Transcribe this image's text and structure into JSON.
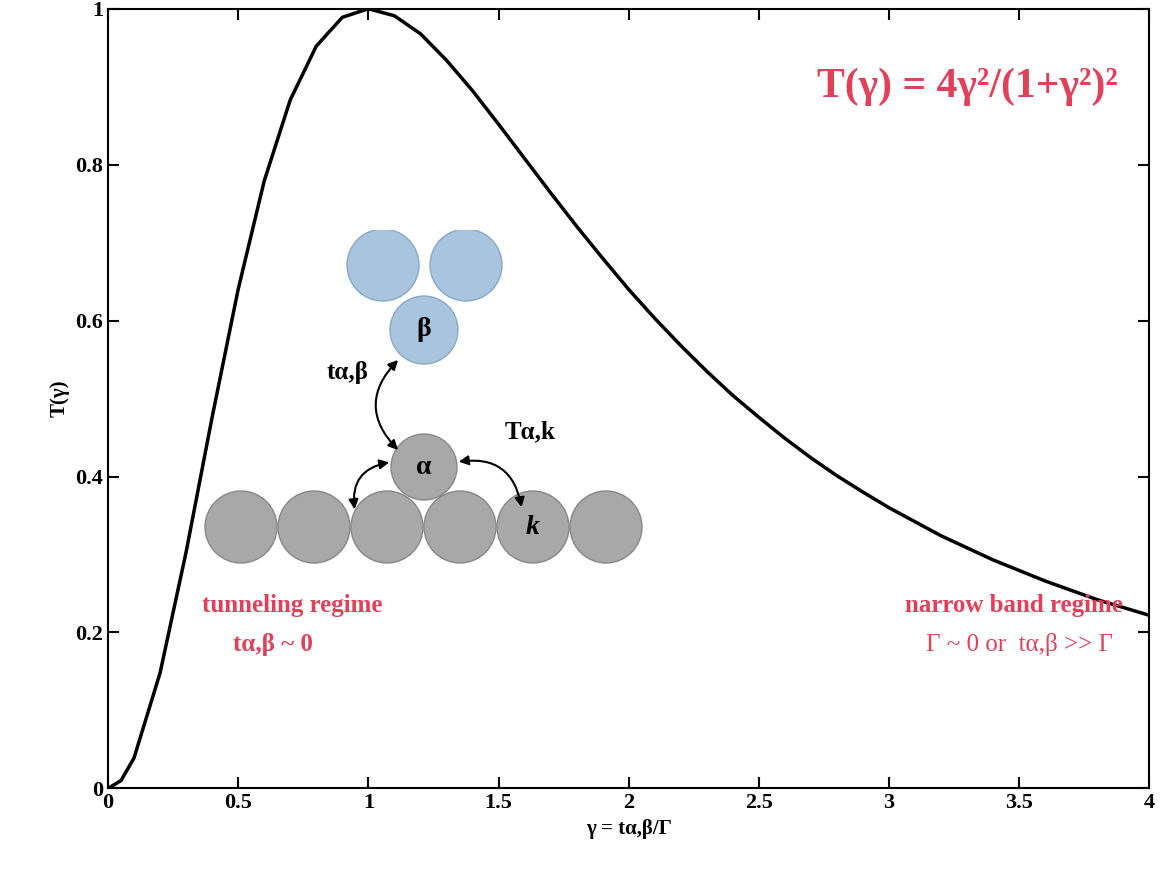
{
  "chart_data": {
    "type": "line",
    "xlabel": "γ = tα,β/Γ",
    "ylabel": "T(γ)",
    "x": [
      0,
      0.05,
      0.1,
      0.2,
      0.3,
      0.4,
      0.5,
      0.6,
      0.7,
      0.8,
      0.9,
      1.0,
      1.1,
      1.2,
      1.3,
      1.4,
      1.5,
      1.6,
      1.7,
      1.8,
      1.9,
      2.0,
      2.1,
      2.2,
      2.3,
      2.4,
      2.5,
      2.6,
      2.7,
      2.8,
      2.9,
      3.0,
      3.2,
      3.4,
      3.6,
      3.8,
      4.0
    ],
    "values": [
      0,
      0.01,
      0.039,
      0.148,
      0.303,
      0.476,
      0.64,
      0.779,
      0.883,
      0.952,
      0.989,
      1.0,
      0.991,
      0.968,
      0.934,
      0.895,
      0.852,
      0.808,
      0.764,
      0.721,
      0.68,
      0.64,
      0.603,
      0.568,
      0.535,
      0.504,
      0.476,
      0.449,
      0.424,
      0.401,
      0.38,
      0.36,
      0.324,
      0.293,
      0.266,
      0.242,
      0.222
    ],
    "color": "#000000",
    "xlim": [
      0,
      4
    ],
    "ylim": [
      0,
      1
    ],
    "xticks": [
      0,
      0.5,
      1,
      1.5,
      2,
      2.5,
      3,
      3.5,
      4
    ],
    "yticks": [
      0,
      0.2,
      0.4,
      0.6,
      0.8,
      1
    ],
    "annotations": [
      "T(γ) = 4γ²/(1+γ²)²",
      "tunneling regime",
      "tα,β ~ 0",
      "narrow band regime",
      "Γ ~ 0 or  tα,β >> Γ"
    ],
    "inset_labels": {
      "beta": "β",
      "alpha": "α",
      "k": "k",
      "t": "tα,β",
      "T": "Tα,k"
    }
  }
}
